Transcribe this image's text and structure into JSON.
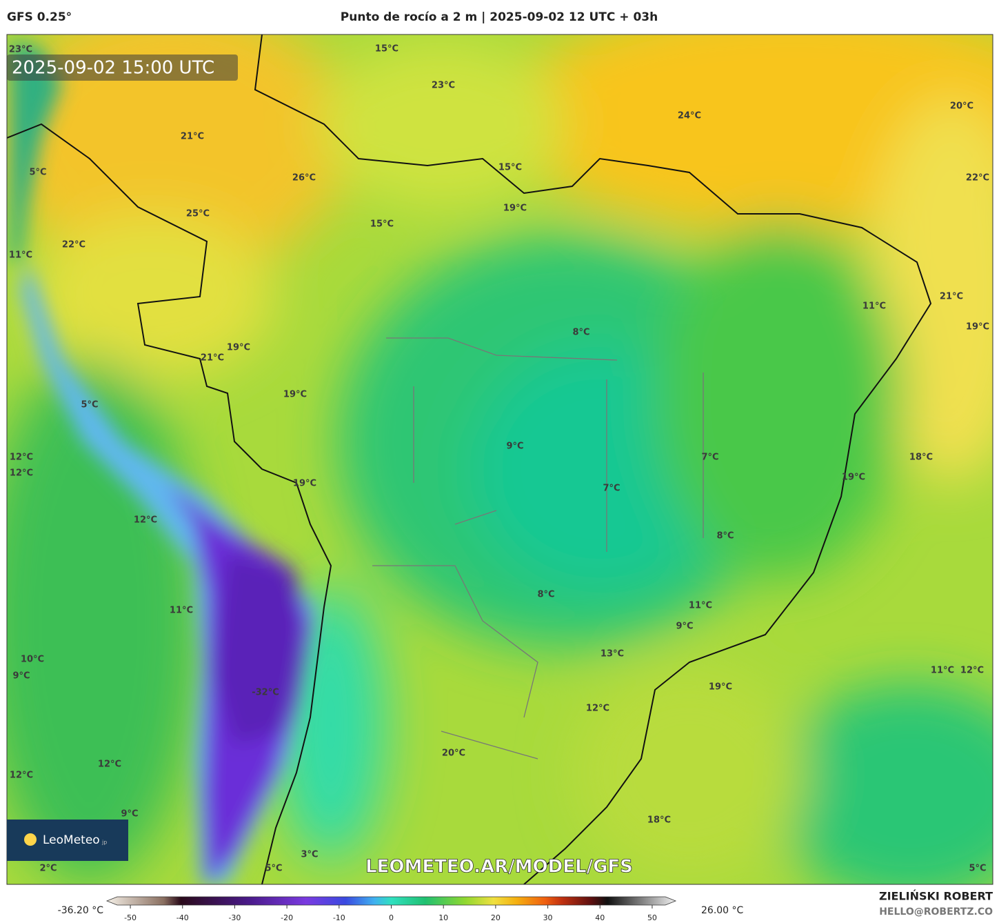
{
  "header": {
    "model": "GFS 0.25°",
    "title": "Punto de rocío a 2 m | 2025-09-02 12 UTC + 03h"
  },
  "timestamp": "2025-09-02 15:00 UTC",
  "map_labels": [
    "23°C",
    "15°C",
    "23°C",
    "24°C",
    "20°C",
    "21°C",
    "15°C",
    "5°C",
    "26°C",
    "22°C",
    "25°C",
    "19°C",
    "15°C",
    "22°C",
    "11°C",
    "21°C",
    "11°C",
    "19°C",
    "8°C",
    "19°C",
    "21°C",
    "19°C",
    "5°C",
    "9°C",
    "12°C",
    "7°C",
    "18°C",
    "12°C",
    "19°C",
    "19°C",
    "7°C",
    "12°C",
    "8°C",
    "8°C",
    "11°C",
    "11°C",
    "9°C",
    "13°C",
    "10°C",
    "11°C",
    "12°C",
    "9°C",
    "19°C",
    "-32°C",
    "12°C",
    "20°C",
    "12°C",
    "12°C",
    "9°C",
    "18°C",
    "3°C",
    "2°C",
    "5°C",
    "5°C"
  ],
  "logo": {
    "name": "LeoMeteo",
    "suffix": "jp"
  },
  "watermark": "LEOMETEO.AR/MODEL/GFS",
  "colorbar": {
    "min_label": "-36.20 °C",
    "max_label": "26.00 °C",
    "range": [
      -54.5,
      54.5
    ],
    "ticks": [
      -50,
      -40,
      -30,
      -20,
      -10,
      0,
      10,
      20,
      30,
      40,
      50
    ]
  },
  "footer": {
    "author": "ZIELIŃSKI ROBERT",
    "email": "HELLO@ROBERTZ.CO"
  }
}
